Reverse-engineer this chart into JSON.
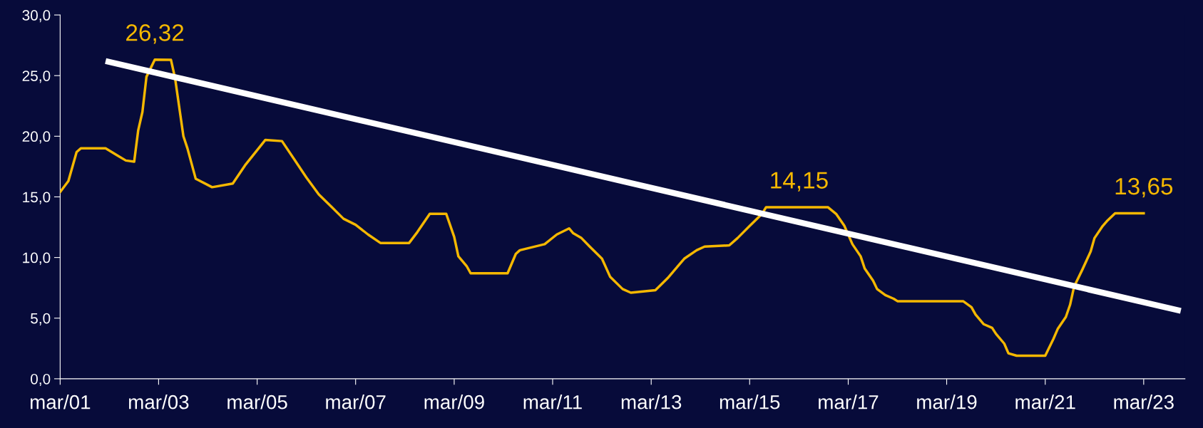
{
  "chart_data": {
    "type": "line",
    "x": [
      "2001-03",
      "2001-05",
      "2001-07",
      "2001-08",
      "2002-02",
      "2002-05",
      "2002-07",
      "2002-09",
      "2002-10",
      "2002-11",
      "2002-12",
      "2003-02",
      "2003-06",
      "2003-07",
      "2003-09",
      "2003-10",
      "2003-12",
      "2004-04",
      "2004-09",
      "2004-12",
      "2005-05",
      "2005-09",
      "2005-12",
      "2006-03",
      "2006-06",
      "2006-09",
      "2006-12",
      "2007-03",
      "2007-06",
      "2007-09",
      "2008-04",
      "2008-06",
      "2008-09",
      "2009-01",
      "2009-03",
      "2009-04",
      "2009-06",
      "2009-07",
      "2010-04",
      "2010-06",
      "2010-07",
      "2011-01",
      "2011-04",
      "2011-07",
      "2011-08",
      "2011-10",
      "2011-12",
      "2012-03",
      "2012-05",
      "2012-08",
      "2012-10",
      "2013-04",
      "2013-07",
      "2013-10",
      "2013-11",
      "2014-02",
      "2014-04",
      "2014-10",
      "2014-12",
      "2015-03",
      "2015-06",
      "2015-07",
      "2016-10",
      "2016-12",
      "2017-02",
      "2017-04",
      "2017-06",
      "2017-07",
      "2017-09",
      "2017-10",
      "2017-12",
      "2018-02",
      "2018-03",
      "2019-07",
      "2019-09",
      "2019-10",
      "2019-12",
      "2020-02",
      "2020-03",
      "2020-05",
      "2020-06",
      "2020-08",
      "2021-03",
      "2021-05",
      "2021-06",
      "2021-08",
      "2021-09",
      "2021-10",
      "2021-12",
      "2022-02",
      "2022-03",
      "2022-05",
      "2022-06",
      "2022-08",
      "2023-03"
    ],
    "series": [
      {
        "color": "#f5b800",
        "values": [
          15.4,
          16.3,
          18.7,
          19.0,
          19.0,
          18.4,
          18.0,
          17.9,
          20.5,
          22.0,
          24.9,
          26.32,
          26.3,
          24.8,
          20.0,
          19.0,
          16.5,
          15.8,
          16.1,
          17.6,
          19.7,
          19.6,
          18.1,
          16.6,
          15.2,
          14.2,
          13.2,
          12.7,
          11.9,
          11.2,
          11.2,
          12.1,
          13.6,
          13.6,
          11.7,
          10.1,
          9.3,
          8.7,
          8.7,
          10.3,
          10.6,
          11.1,
          11.9,
          12.4,
          12.0,
          11.6,
          10.9,
          9.9,
          8.4,
          7.4,
          7.1,
          7.3,
          8.3,
          9.5,
          9.9,
          10.6,
          10.9,
          11.0,
          11.6,
          12.6,
          13.6,
          14.15,
          14.15,
          13.6,
          12.6,
          11.1,
          10.1,
          9.1,
          8.1,
          7.4,
          6.9,
          6.6,
          6.4,
          6.4,
          5.9,
          5.3,
          4.5,
          4.2,
          3.7,
          2.9,
          2.1,
          1.9,
          1.9,
          3.3,
          4.1,
          5.1,
          6.1,
          7.6,
          9.0,
          10.5,
          11.6,
          12.6,
          13.0,
          13.65,
          13.65
        ]
      },
      {
        "color": "#ffffff",
        "x": [
          "2002-02",
          "2023-12"
        ],
        "values": [
          26.2,
          5.6
        ]
      }
    ],
    "xlim": [
      "2001-03",
      "2024-01"
    ],
    "xticks": [
      {
        "value": "2001-03",
        "label": "mar/01"
      },
      {
        "value": "2003-03",
        "label": "mar/03"
      },
      {
        "value": "2005-03",
        "label": "mar/05"
      },
      {
        "value": "2007-03",
        "label": "mar/07"
      },
      {
        "value": "2009-03",
        "label": "mar/09"
      },
      {
        "value": "2011-03",
        "label": "mar/11"
      },
      {
        "value": "2013-03",
        "label": "mar/13"
      },
      {
        "value": "2015-03",
        "label": "mar/15"
      },
      {
        "value": "2017-03",
        "label": "mar/17"
      },
      {
        "value": "2019-03",
        "label": "mar/19"
      },
      {
        "value": "2021-03",
        "label": "mar/21"
      },
      {
        "value": "2023-03",
        "label": "mar/23"
      }
    ],
    "ylim": [
      0,
      30
    ],
    "yticks": [
      {
        "value": 0,
        "label": "0,0"
      },
      {
        "value": 5,
        "label": "5,0"
      },
      {
        "value": 10,
        "label": "10,0"
      },
      {
        "value": 15,
        "label": "15,0"
      },
      {
        "value": 20,
        "label": "20,0"
      },
      {
        "value": 25,
        "label": "25,0"
      },
      {
        "value": 30,
        "label": "30,0"
      }
    ],
    "annotations": [
      {
        "text": "26,32",
        "x": "2003-02",
        "y": 26.32
      },
      {
        "text": "14,15",
        "x": "2016-03",
        "y": 14.15
      },
      {
        "text": "13,65",
        "x": "2023-03",
        "y": 13.65
      }
    ],
    "grid": false,
    "legend": false,
    "marker": "none",
    "line_style": "solid"
  }
}
